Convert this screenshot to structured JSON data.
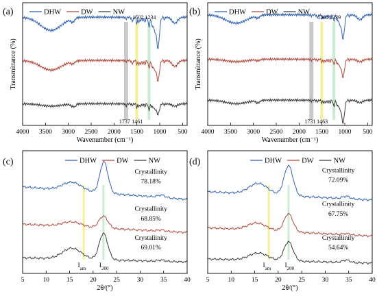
{
  "colors": {
    "DHW": "#2e5fb8",
    "DW": "#b5473a",
    "NW": "#3b3b3b",
    "grey_band": "#bfbfbf",
    "yellow_band": "#f1ec8a",
    "green_band": "#bfe7c9"
  },
  "chart_data": [
    {
      "type": "line",
      "panel": "(a)",
      "xlabel": "Wavenumber (cm⁻¹)",
      "ylabel": "Transmittance (%)",
      "xlim": [
        4000,
        400
      ],
      "xticks": [
        4000,
        3500,
        3000,
        2500,
        2000,
        1500,
        1000,
        500
      ],
      "legend_placement": "top-left",
      "series": [
        {
          "name": "DHW",
          "baseline": 0.82,
          "features": [
            [
              3380,
              0.11,
              230
            ],
            [
              2905,
              0.03,
              40
            ],
            [
              1737,
              0.015,
              15
            ],
            [
              1600,
              0.03,
              20
            ],
            [
              1502,
              0.05,
              12
            ],
            [
              1461,
              0.04,
              14
            ],
            [
              1420,
              0.03,
              14
            ],
            [
              1370,
              0.03,
              14
            ],
            [
              1320,
              0.035,
              14
            ],
            [
              1234,
              0.08,
              18
            ],
            [
              1160,
              0.08,
              20
            ],
            [
              1110,
              0.1,
              18
            ],
            [
              1040,
              0.26,
              32
            ],
            [
              895,
              0.02,
              12
            ],
            [
              670,
              0.05,
              60
            ]
          ]
        },
        {
          "name": "DW",
          "baseline": 0.46,
          "features": [
            [
              3380,
              0.08,
              230
            ],
            [
              2905,
              0.02,
              40
            ],
            [
              1737,
              0.01,
              15
            ],
            [
              1600,
              0.025,
              20
            ],
            [
              1502,
              0.03,
              12
            ],
            [
              1461,
              0.03,
              14
            ],
            [
              1420,
              0.03,
              14
            ],
            [
              1370,
              0.03,
              14
            ],
            [
              1320,
              0.03,
              14
            ],
            [
              1234,
              0.06,
              18
            ],
            [
              1160,
              0.06,
              20
            ],
            [
              1110,
              0.07,
              18
            ],
            [
              1040,
              0.17,
              32
            ],
            [
              895,
              0.015,
              12
            ],
            [
              670,
              0.05,
              60
            ]
          ]
        },
        {
          "name": "NW",
          "baseline": 0.1,
          "features": [
            [
              3380,
              0.02,
              230
            ],
            [
              2905,
              0.02,
              40
            ],
            [
              2850,
              0.015,
              20
            ],
            [
              1737,
              0.02,
              15
            ],
            [
              1600,
              0.01,
              20
            ],
            [
              1502,
              0.03,
              12
            ],
            [
              1461,
              0.02,
              14
            ],
            [
              1420,
              0.02,
              14
            ],
            [
              1370,
              0.015,
              14
            ],
            [
              1320,
              0.02,
              14
            ],
            [
              1234,
              0.05,
              18
            ],
            [
              1160,
              0.03,
              20
            ],
            [
              1110,
              0.04,
              18
            ],
            [
              1040,
              0.09,
              32
            ],
            [
              895,
              0.01,
              12
            ],
            [
              670,
              0.02,
              60
            ]
          ]
        }
      ],
      "bands": [
        {
          "x": 1737,
          "color": "grey",
          "label": "1737",
          "label_pos": "bottom"
        },
        {
          "x": 1502,
          "color": "yellow",
          "label": "1502",
          "label_pos": "top"
        },
        {
          "x": 1461,
          "color": "none",
          "label": "1461",
          "label_pos": "bottom"
        },
        {
          "x": 1234,
          "color": "green",
          "label": "1234",
          "label_pos": "top"
        }
      ]
    },
    {
      "type": "line",
      "panel": "(b)",
      "xlabel": "Wavenumber (cm⁻¹)",
      "ylabel": "Transmittance (%)",
      "xlim": [
        4000,
        400
      ],
      "xticks": [
        4000,
        3500,
        3000,
        2500,
        2000,
        1500,
        1000,
        500
      ],
      "legend_placement": "top-left",
      "series": [
        {
          "name": "DHW",
          "baseline": 0.84,
          "features": [
            [
              3380,
              0.07,
              230
            ],
            [
              2905,
              0.02,
              40
            ],
            [
              1731,
              0.01,
              15
            ],
            [
              1600,
              0.02,
              20
            ],
            [
              1504,
              0.03,
              12
            ],
            [
              1463,
              0.03,
              14
            ],
            [
              1420,
              0.02,
              14
            ],
            [
              1370,
              0.02,
              14
            ],
            [
              1320,
              0.03,
              14
            ],
            [
              1239,
              0.05,
              18
            ],
            [
              1160,
              0.05,
              20
            ],
            [
              1110,
              0.07,
              18
            ],
            [
              1040,
              0.2,
              32
            ],
            [
              895,
              0.015,
              12
            ],
            [
              670,
              0.04,
              60
            ]
          ]
        },
        {
          "name": "DW",
          "baseline": 0.47,
          "features": [
            [
              3380,
              0.02,
              230
            ],
            [
              2905,
              0.01,
              40
            ],
            [
              1731,
              0.01,
              15
            ],
            [
              1600,
              0.01,
              20
            ],
            [
              1504,
              0.02,
              12
            ],
            [
              1463,
              0.02,
              14
            ],
            [
              1420,
              0.02,
              14
            ],
            [
              1370,
              0.015,
              14
            ],
            [
              1320,
              0.02,
              14
            ],
            [
              1239,
              0.04,
              18
            ],
            [
              1160,
              0.04,
              20
            ],
            [
              1110,
              0.05,
              18
            ],
            [
              1040,
              0.15,
              32
            ],
            [
              895,
              0.01,
              12
            ],
            [
              670,
              0.02,
              60
            ]
          ]
        },
        {
          "name": "NW",
          "baseline": 0.13,
          "features": [
            [
              3380,
              0.03,
              230
            ],
            [
              2905,
              0.02,
              40
            ],
            [
              1731,
              0.01,
              15
            ],
            [
              1600,
              0.01,
              20
            ],
            [
              1504,
              0.02,
              12
            ],
            [
              1463,
              0.02,
              14
            ],
            [
              1420,
              0.02,
              14
            ],
            [
              1370,
              0.02,
              14
            ],
            [
              1320,
              0.02,
              14
            ],
            [
              1239,
              0.05,
              18
            ],
            [
              1160,
              0.05,
              20
            ],
            [
              1110,
              0.06,
              18
            ],
            [
              1040,
              0.19,
              32
            ],
            [
              895,
              0.01,
              12
            ],
            [
              670,
              0.02,
              60
            ]
          ]
        }
      ],
      "bands": [
        {
          "x": 1731,
          "color": "grey",
          "label": "1731",
          "label_pos": "bottom"
        },
        {
          "x": 1504,
          "color": "yellow",
          "label": "1504",
          "label_pos": "top"
        },
        {
          "x": 1463,
          "color": "none",
          "label": "1463",
          "label_pos": "bottom"
        },
        {
          "x": 1239,
          "color": "green",
          "label": "1239",
          "label_pos": "top"
        }
      ]
    },
    {
      "type": "line",
      "panel": "(c)",
      "xlabel": "2θ/(°)",
      "ylabel": "",
      "xlim": [
        5,
        40
      ],
      "xticks": [
        5,
        10,
        15,
        20,
        25,
        30,
        35,
        40
      ],
      "legend_placement": "top-center",
      "series": [
        {
          "name": "DHW",
          "baseline": 0.64,
          "slope": -0.003,
          "features": [
            [
              15.5,
              0.07,
              2.0
            ],
            [
              22.3,
              0.26,
              0.85
            ],
            [
              34.5,
              0.02,
              0.8
            ]
          ]
        },
        {
          "name": "DW",
          "baseline": 0.33,
          "slope": -0.002,
          "features": [
            [
              15.5,
              0.04,
              2.0
            ],
            [
              22.2,
              0.1,
              0.95
            ],
            [
              34.5,
              0.01,
              0.8
            ]
          ]
        },
        {
          "name": "NW",
          "baseline": 0.05,
          "slope": -0.001,
          "features": [
            [
              15.5,
              0.09,
              2.0
            ],
            [
              22.2,
              0.22,
              0.9
            ],
            [
              34.5,
              0.01,
              0.8
            ]
          ]
        }
      ],
      "bands": [
        {
          "x": 18.0,
          "color": "yellow"
        },
        {
          "x": 22.2,
          "color": "green"
        }
      ],
      "annotations": [
        {
          "text": "Crystallinity",
          "x": 32.3,
          "y": 0.75
        },
        {
          "text": "78.18%",
          "x": 32.3,
          "y": 0.67
        },
        {
          "text": "Crystallinity",
          "x": 32.3,
          "y": 0.44
        },
        {
          "text": "68.85%",
          "x": 32.3,
          "y": 0.36
        },
        {
          "text": "Crystallinity",
          "x": 32.3,
          "y": 0.2
        },
        {
          "text": "69.01%",
          "x": 32.3,
          "y": 0.12
        },
        {
          "text": "I",
          "sub": "am",
          "x": 17.6,
          "y": -0.03
        },
        {
          "text": "I",
          "sub": "200",
          "x": 22.3,
          "y": -0.03
        }
      ]
    },
    {
      "type": "line",
      "panel": "(d)",
      "xlabel": "2θ/(°)",
      "ylabel": "",
      "xlim": [
        5,
        40
      ],
      "xticks": [
        5,
        10,
        15,
        20,
        25,
        30,
        35,
        40
      ],
      "legend_placement": "top-center",
      "series": [
        {
          "name": "DHW",
          "baseline": 0.6,
          "slope": -0.002,
          "features": [
            [
              15.8,
              0.09,
              2.0
            ],
            [
              22.2,
              0.25,
              0.95
            ],
            [
              34.5,
              0.02,
              0.8
            ]
          ]
        },
        {
          "name": "DW",
          "baseline": 0.3,
          "slope": -0.002,
          "features": [
            [
              15.5,
              0.06,
              2.0
            ],
            [
              22.2,
              0.15,
              0.95
            ],
            [
              34.5,
              0.01,
              0.8
            ]
          ]
        },
        {
          "name": "NW",
          "baseline": 0.04,
          "slope": -0.001,
          "features": [
            [
              15.8,
              0.06,
              2.0
            ],
            [
              22.2,
              0.16,
              0.95
            ],
            [
              34.5,
              0.02,
              0.8
            ]
          ]
        }
      ],
      "bands": [
        {
          "x": 18.0,
          "color": "yellow"
        },
        {
          "x": 22.2,
          "color": "green"
        }
      ],
      "annotations": [
        {
          "text": "Crystallinity",
          "x": 32.8,
          "y": 0.76
        },
        {
          "text": "72.09%",
          "x": 32.8,
          "y": 0.68
        },
        {
          "text": "Crystallinity",
          "x": 32.8,
          "y": 0.48
        },
        {
          "text": "67.75%",
          "x": 32.8,
          "y": 0.4
        },
        {
          "text": "Crystallinity",
          "x": 32.8,
          "y": 0.2
        },
        {
          "text": "54.64%",
          "x": 32.8,
          "y": 0.12
        },
        {
          "text": "I",
          "sub": "am",
          "x": 17.6,
          "y": -0.03
        },
        {
          "text": "I",
          "sub": "200",
          "x": 22.4,
          "y": -0.03
        }
      ]
    }
  ]
}
